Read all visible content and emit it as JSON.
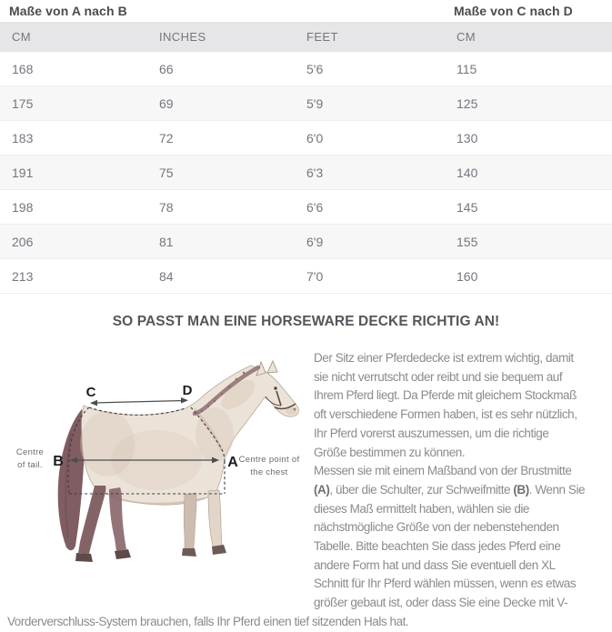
{
  "size_table": {
    "left_title": "Maße von A nach B",
    "right_title": "Maße von C nach D",
    "columns": [
      "CM",
      "INCHES",
      "FEET",
      "CM"
    ],
    "rows": [
      [
        "168",
        "66",
        "5'6",
        "115"
      ],
      [
        "175",
        "69",
        "5'9",
        "125"
      ],
      [
        "183",
        "72",
        "6'0",
        "130"
      ],
      [
        "191",
        "75",
        "6'3",
        "140"
      ],
      [
        "198",
        "78",
        "6'6",
        "145"
      ],
      [
        "206",
        "81",
        "6'9",
        "155"
      ],
      [
        "213",
        "84",
        "7'0",
        "160"
      ]
    ]
  },
  "heading": "SO PASST MAN EINE HORSEWARE DECKE RICHTIG AN!",
  "diagram": {
    "label_a": "A",
    "label_b": "B",
    "label_c": "C",
    "label_d": "D",
    "left_caption_line1": "Centre",
    "left_caption_line2": "of tail.",
    "right_caption_line1": "Centre point of",
    "right_caption_line2": "the chest"
  },
  "body_text": {
    "p1_lines": [
      "Der Sitz einer Pferdedecke ist extrem wichtig, damit",
      "sie nicht verrutscht oder reibt und sie bequem auf",
      "Ihrem Pferd liegt. Da Pferde mit gleichem Stockmaß",
      "oft verschiedene Formen haben, ist es sehr nützlich,",
      "Ihr Pferd vorerst auszumessen, um die richtige",
      "Größe bestimmen zu können."
    ],
    "p2_line1": "Messen sie mit einem Maßband von der Brustmitte",
    "p2_line2": {
      "b1": "(A)",
      "t1": ", über die Schulter, zur Schweifmitte ",
      "b2": "(B)",
      "t2": ". Wenn Sie"
    },
    "p2_rest_lines": [
      "dieses Maß ermittelt haben, wählen sie die",
      "nächstmögliche Größe von der nebenstehenden",
      "Tabelle. Bitte beachten Sie dass jedes Pferd eine",
      "andere Form hat und dass Sie eventuell den XL",
      "Schnitt für Ihr Pferd wählen müssen, wenn es etwas",
      "größer gebaut ist, oder dass Sie eine Decke mit V-"
    ],
    "full_line": "Vorderverschluss-System brauchen, falls Ihr Pferd einen tief sitzenden Hals hat."
  },
  "colors": {
    "header_row_bg": "#e6e6e8",
    "alt_row_bg": "#f7f7f8",
    "table_text": "#75757e",
    "title_text": "#4b4b50",
    "heading_text": "#55565b",
    "body_text": "#8b8b8f",
    "horse_body": "#ece3d8",
    "mane_tail": "#7f5d62",
    "dash_line": "#3d3d3d"
  }
}
